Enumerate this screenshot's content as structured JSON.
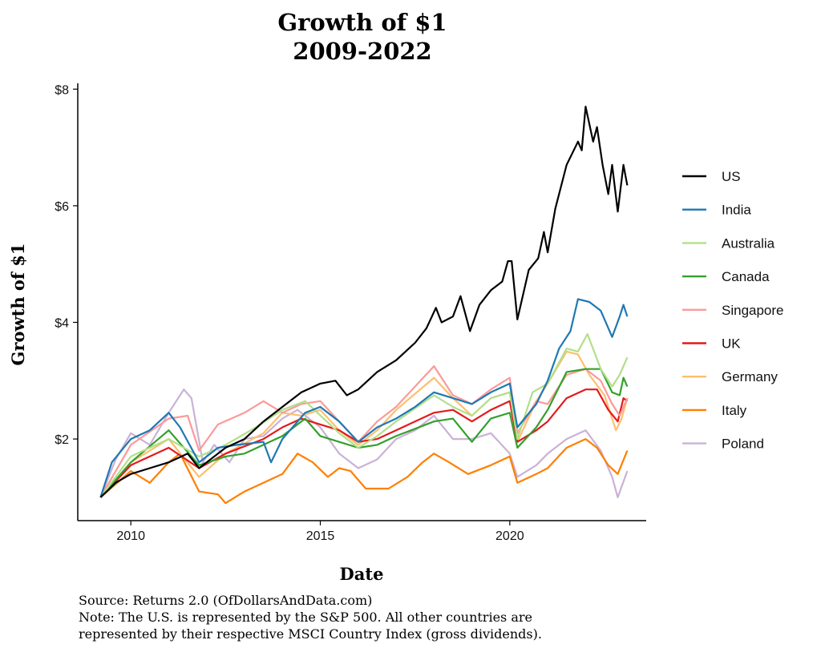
{
  "chart_data": {
    "type": "line",
    "title": [
      "Growth of $1",
      "2009-2022"
    ],
    "xlabel": "Date",
    "ylabel": "Growth of $1",
    "xlim": [
      2008.6,
      2023.6
    ],
    "ylim": [
      0.6,
      8.1
    ],
    "xticks": [
      {
        "value": 2010,
        "label": "2010"
      },
      {
        "value": 2015,
        "label": "2015"
      },
      {
        "value": 2020,
        "label": "2020"
      }
    ],
    "yticks": [
      {
        "value": 2,
        "label": "$2"
      },
      {
        "value": 4,
        "label": "$4"
      },
      {
        "value": 6,
        "label": "$6"
      },
      {
        "value": 8,
        "label": "$8"
      }
    ],
    "grid": false,
    "legend_position": "right",
    "series": [
      {
        "name": "US",
        "color": "#000000",
        "points": [
          [
            2009.2,
            1.0
          ],
          [
            2009.6,
            1.25
          ],
          [
            2010,
            1.4
          ],
          [
            2010.5,
            1.5
          ],
          [
            2011,
            1.6
          ],
          [
            2011.5,
            1.75
          ],
          [
            2011.8,
            1.5
          ],
          [
            2012.5,
            1.85
          ],
          [
            2013,
            2.0
          ],
          [
            2013.5,
            2.3
          ],
          [
            2014,
            2.55
          ],
          [
            2014.5,
            2.8
          ],
          [
            2015,
            2.95
          ],
          [
            2015.4,
            3.0
          ],
          [
            2015.7,
            2.75
          ],
          [
            2016,
            2.85
          ],
          [
            2016.5,
            3.15
          ],
          [
            2017,
            3.35
          ],
          [
            2017.5,
            3.65
          ],
          [
            2017.8,
            3.9
          ],
          [
            2018.05,
            4.25
          ],
          [
            2018.2,
            4.0
          ],
          [
            2018.5,
            4.1
          ],
          [
            2018.7,
            4.45
          ],
          [
            2018.95,
            3.85
          ],
          [
            2019.2,
            4.3
          ],
          [
            2019.5,
            4.55
          ],
          [
            2019.8,
            4.7
          ],
          [
            2019.95,
            5.05
          ],
          [
            2020.05,
            5.05
          ],
          [
            2020.2,
            4.05
          ],
          [
            2020.5,
            4.9
          ],
          [
            2020.75,
            5.1
          ],
          [
            2020.9,
            5.55
          ],
          [
            2021.0,
            5.2
          ],
          [
            2021.2,
            5.95
          ],
          [
            2021.5,
            6.7
          ],
          [
            2021.8,
            7.1
          ],
          [
            2021.9,
            6.95
          ],
          [
            2022.0,
            7.7
          ],
          [
            2022.2,
            7.1
          ],
          [
            2022.3,
            7.35
          ],
          [
            2022.45,
            6.7
          ],
          [
            2022.6,
            6.2
          ],
          [
            2022.7,
            6.7
          ],
          [
            2022.85,
            5.9
          ],
          [
            2023.0,
            6.7
          ],
          [
            2023.1,
            6.35
          ]
        ]
      },
      {
        "name": "India",
        "color": "#1f78b4",
        "points": [
          [
            2009.2,
            1.0
          ],
          [
            2009.5,
            1.6
          ],
          [
            2010,
            2.0
          ],
          [
            2010.5,
            2.15
          ],
          [
            2011,
            2.45
          ],
          [
            2011.3,
            2.2
          ],
          [
            2011.8,
            1.6
          ],
          [
            2012.3,
            1.85
          ],
          [
            2012.8,
            1.9
          ],
          [
            2013.5,
            1.95
          ],
          [
            2013.7,
            1.6
          ],
          [
            2014,
            2.0
          ],
          [
            2014.6,
            2.45
          ],
          [
            2015,
            2.55
          ],
          [
            2015.5,
            2.3
          ],
          [
            2016,
            1.95
          ],
          [
            2016.5,
            2.2
          ],
          [
            2017,
            2.35
          ],
          [
            2017.5,
            2.55
          ],
          [
            2018,
            2.8
          ],
          [
            2018.5,
            2.7
          ],
          [
            2019,
            2.6
          ],
          [
            2019.5,
            2.8
          ],
          [
            2020,
            2.95
          ],
          [
            2020.2,
            2.2
          ],
          [
            2020.7,
            2.6
          ],
          [
            2021,
            3.0
          ],
          [
            2021.3,
            3.55
          ],
          [
            2021.6,
            3.85
          ],
          [
            2021.8,
            4.4
          ],
          [
            2022.1,
            4.35
          ],
          [
            2022.4,
            4.2
          ],
          [
            2022.7,
            3.75
          ],
          [
            2022.9,
            4.1
          ],
          [
            2023.0,
            4.3
          ],
          [
            2023.1,
            4.1
          ]
        ]
      },
      {
        "name": "Australia",
        "color": "#b2df8a",
        "points": [
          [
            2009.2,
            1.0
          ],
          [
            2010,
            1.7
          ],
          [
            2011,
            2.0
          ],
          [
            2011.8,
            1.7
          ],
          [
            2012.5,
            1.9
          ],
          [
            2013.3,
            2.2
          ],
          [
            2014,
            2.5
          ],
          [
            2014.6,
            2.65
          ],
          [
            2015.5,
            2.1
          ],
          [
            2016,
            1.85
          ],
          [
            2016.5,
            2.05
          ],
          [
            2017,
            2.3
          ],
          [
            2018,
            2.75
          ],
          [
            2018.5,
            2.55
          ],
          [
            2019,
            2.4
          ],
          [
            2019.5,
            2.7
          ],
          [
            2020,
            2.8
          ],
          [
            2020.2,
            2.0
          ],
          [
            2020.6,
            2.8
          ],
          [
            2021,
            2.95
          ],
          [
            2021.5,
            3.55
          ],
          [
            2021.8,
            3.5
          ],
          [
            2022.05,
            3.8
          ],
          [
            2022.4,
            3.2
          ],
          [
            2022.7,
            2.9
          ],
          [
            2022.9,
            3.1
          ],
          [
            2023.1,
            3.4
          ]
        ]
      },
      {
        "name": "Canada",
        "color": "#33a02c",
        "points": [
          [
            2009.2,
            1.0
          ],
          [
            2010,
            1.6
          ],
          [
            2011,
            2.15
          ],
          [
            2011.8,
            1.55
          ],
          [
            2012.5,
            1.7
          ],
          [
            2013,
            1.75
          ],
          [
            2014,
            2.05
          ],
          [
            2014.6,
            2.35
          ],
          [
            2015,
            2.05
          ],
          [
            2015.5,
            1.95
          ],
          [
            2016,
            1.85
          ],
          [
            2016.5,
            1.9
          ],
          [
            2017,
            2.05
          ],
          [
            2018,
            2.3
          ],
          [
            2018.5,
            2.35
          ],
          [
            2019,
            1.95
          ],
          [
            2019.5,
            2.35
          ],
          [
            2020,
            2.45
          ],
          [
            2020.2,
            1.85
          ],
          [
            2020.7,
            2.2
          ],
          [
            2021,
            2.5
          ],
          [
            2021.5,
            3.15
          ],
          [
            2022,
            3.2
          ],
          [
            2022.4,
            3.2
          ],
          [
            2022.7,
            2.8
          ],
          [
            2022.9,
            2.75
          ],
          [
            2023.0,
            3.05
          ],
          [
            2023.1,
            2.9
          ]
        ]
      },
      {
        "name": "Singapore",
        "color": "#fb9a99",
        "points": [
          [
            2009.2,
            1.0
          ],
          [
            2010,
            1.9
          ],
          [
            2011,
            2.35
          ],
          [
            2011.5,
            2.4
          ],
          [
            2011.8,
            1.8
          ],
          [
            2012.3,
            2.25
          ],
          [
            2013,
            2.45
          ],
          [
            2013.5,
            2.65
          ],
          [
            2014,
            2.45
          ],
          [
            2014.5,
            2.6
          ],
          [
            2015,
            2.65
          ],
          [
            2015.5,
            2.3
          ],
          [
            2016,
            1.95
          ],
          [
            2016.5,
            2.3
          ],
          [
            2017,
            2.55
          ],
          [
            2018,
            3.25
          ],
          [
            2018.5,
            2.75
          ],
          [
            2019,
            2.6
          ],
          [
            2019.5,
            2.85
          ],
          [
            2020,
            3.05
          ],
          [
            2020.2,
            2.1
          ],
          [
            2020.7,
            2.65
          ],
          [
            2021,
            2.6
          ],
          [
            2021.5,
            3.1
          ],
          [
            2022,
            3.2
          ],
          [
            2022.4,
            3.0
          ],
          [
            2022.7,
            2.6
          ],
          [
            2022.9,
            2.4
          ],
          [
            2023.1,
            2.7
          ]
        ]
      },
      {
        "name": "UK",
        "color": "#e31a1c",
        "points": [
          [
            2009.2,
            1.0
          ],
          [
            2010,
            1.55
          ],
          [
            2011,
            1.85
          ],
          [
            2011.8,
            1.5
          ],
          [
            2012.5,
            1.75
          ],
          [
            2013.5,
            2.0
          ],
          [
            2014,
            2.2
          ],
          [
            2014.5,
            2.35
          ],
          [
            2015,
            2.25
          ],
          [
            2015.5,
            2.15
          ],
          [
            2016,
            1.95
          ],
          [
            2016.5,
            2.0
          ],
          [
            2017,
            2.15
          ],
          [
            2018,
            2.45
          ],
          [
            2018.5,
            2.5
          ],
          [
            2019,
            2.3
          ],
          [
            2019.5,
            2.5
          ],
          [
            2020,
            2.65
          ],
          [
            2020.2,
            1.95
          ],
          [
            2020.7,
            2.15
          ],
          [
            2021,
            2.3
          ],
          [
            2021.5,
            2.7
          ],
          [
            2022,
            2.85
          ],
          [
            2022.3,
            2.85
          ],
          [
            2022.6,
            2.5
          ],
          [
            2022.85,
            2.3
          ],
          [
            2023.0,
            2.7
          ],
          [
            2023.1,
            2.65
          ]
        ]
      },
      {
        "name": "Germany",
        "color": "#fdbf6f",
        "points": [
          [
            2009.2,
            1.0
          ],
          [
            2010,
            1.6
          ],
          [
            2011,
            2.0
          ],
          [
            2011.8,
            1.35
          ],
          [
            2012.5,
            1.75
          ],
          [
            2013.5,
            2.1
          ],
          [
            2014,
            2.45
          ],
          [
            2014.5,
            2.4
          ],
          [
            2015,
            2.5
          ],
          [
            2015.5,
            2.15
          ],
          [
            2016,
            1.9
          ],
          [
            2016.5,
            2.15
          ],
          [
            2017,
            2.5
          ],
          [
            2018,
            3.05
          ],
          [
            2018.5,
            2.7
          ],
          [
            2019,
            2.4
          ],
          [
            2019.5,
            2.7
          ],
          [
            2020,
            2.8
          ],
          [
            2020.2,
            1.95
          ],
          [
            2020.7,
            2.65
          ],
          [
            2021,
            2.95
          ],
          [
            2021.5,
            3.5
          ],
          [
            2021.8,
            3.45
          ],
          [
            2022.1,
            3.1
          ],
          [
            2022.5,
            2.75
          ],
          [
            2022.8,
            2.15
          ],
          [
            2022.95,
            2.35
          ],
          [
            2023.1,
            2.7
          ]
        ]
      },
      {
        "name": "Italy",
        "color": "#ff7f00",
        "points": [
          [
            2009.2,
            1.0
          ],
          [
            2010,
            1.45
          ],
          [
            2010.5,
            1.25
          ],
          [
            2011,
            1.6
          ],
          [
            2011.3,
            1.75
          ],
          [
            2011.8,
            1.1
          ],
          [
            2012.3,
            1.05
          ],
          [
            2012.5,
            0.9
          ],
          [
            2013,
            1.1
          ],
          [
            2013.5,
            1.25
          ],
          [
            2014,
            1.4
          ],
          [
            2014.4,
            1.75
          ],
          [
            2014.8,
            1.6
          ],
          [
            2015.2,
            1.35
          ],
          [
            2015.5,
            1.5
          ],
          [
            2015.8,
            1.45
          ],
          [
            2016.2,
            1.15
          ],
          [
            2016.8,
            1.15
          ],
          [
            2017.3,
            1.35
          ],
          [
            2017.7,
            1.6
          ],
          [
            2018,
            1.75
          ],
          [
            2018.4,
            1.6
          ],
          [
            2018.9,
            1.4
          ],
          [
            2019.5,
            1.55
          ],
          [
            2020,
            1.7
          ],
          [
            2020.2,
            1.25
          ],
          [
            2020.7,
            1.4
          ],
          [
            2021,
            1.5
          ],
          [
            2021.5,
            1.85
          ],
          [
            2022,
            2.0
          ],
          [
            2022.3,
            1.85
          ],
          [
            2022.6,
            1.55
          ],
          [
            2022.85,
            1.4
          ],
          [
            2023.1,
            1.8
          ]
        ]
      },
      {
        "name": "Poland",
        "color": "#cab2d6",
        "points": [
          [
            2009.2,
            1.0
          ],
          [
            2009.6,
            1.65
          ],
          [
            2010,
            2.1
          ],
          [
            2010.5,
            1.9
          ],
          [
            2011,
            2.45
          ],
          [
            2011.4,
            2.85
          ],
          [
            2011.6,
            2.7
          ],
          [
            2011.9,
            1.6
          ],
          [
            2012.2,
            1.9
          ],
          [
            2012.6,
            1.6
          ],
          [
            2013,
            2.0
          ],
          [
            2013.5,
            2.05
          ],
          [
            2014,
            2.35
          ],
          [
            2014.4,
            2.5
          ],
          [
            2015,
            2.2
          ],
          [
            2015.5,
            1.75
          ],
          [
            2016,
            1.5
          ],
          [
            2016.5,
            1.65
          ],
          [
            2017,
            2.0
          ],
          [
            2017.5,
            2.15
          ],
          [
            2018,
            2.4
          ],
          [
            2018.5,
            2.0
          ],
          [
            2019,
            2.0
          ],
          [
            2019.5,
            2.1
          ],
          [
            2020,
            1.75
          ],
          [
            2020.2,
            1.35
          ],
          [
            2020.7,
            1.55
          ],
          [
            2021,
            1.75
          ],
          [
            2021.5,
            2.0
          ],
          [
            2022,
            2.15
          ],
          [
            2022.4,
            1.8
          ],
          [
            2022.7,
            1.35
          ],
          [
            2022.85,
            1.0
          ],
          [
            2023.1,
            1.45
          ]
        ]
      }
    ]
  },
  "notes": [
    "Source: Returns 2.0 (OfDollarsAndData.com)",
    "Note: The U.S. is represented by the S&P 500. All other countries are",
    "represented by their respective MSCI Country Index (gross dividends)."
  ]
}
